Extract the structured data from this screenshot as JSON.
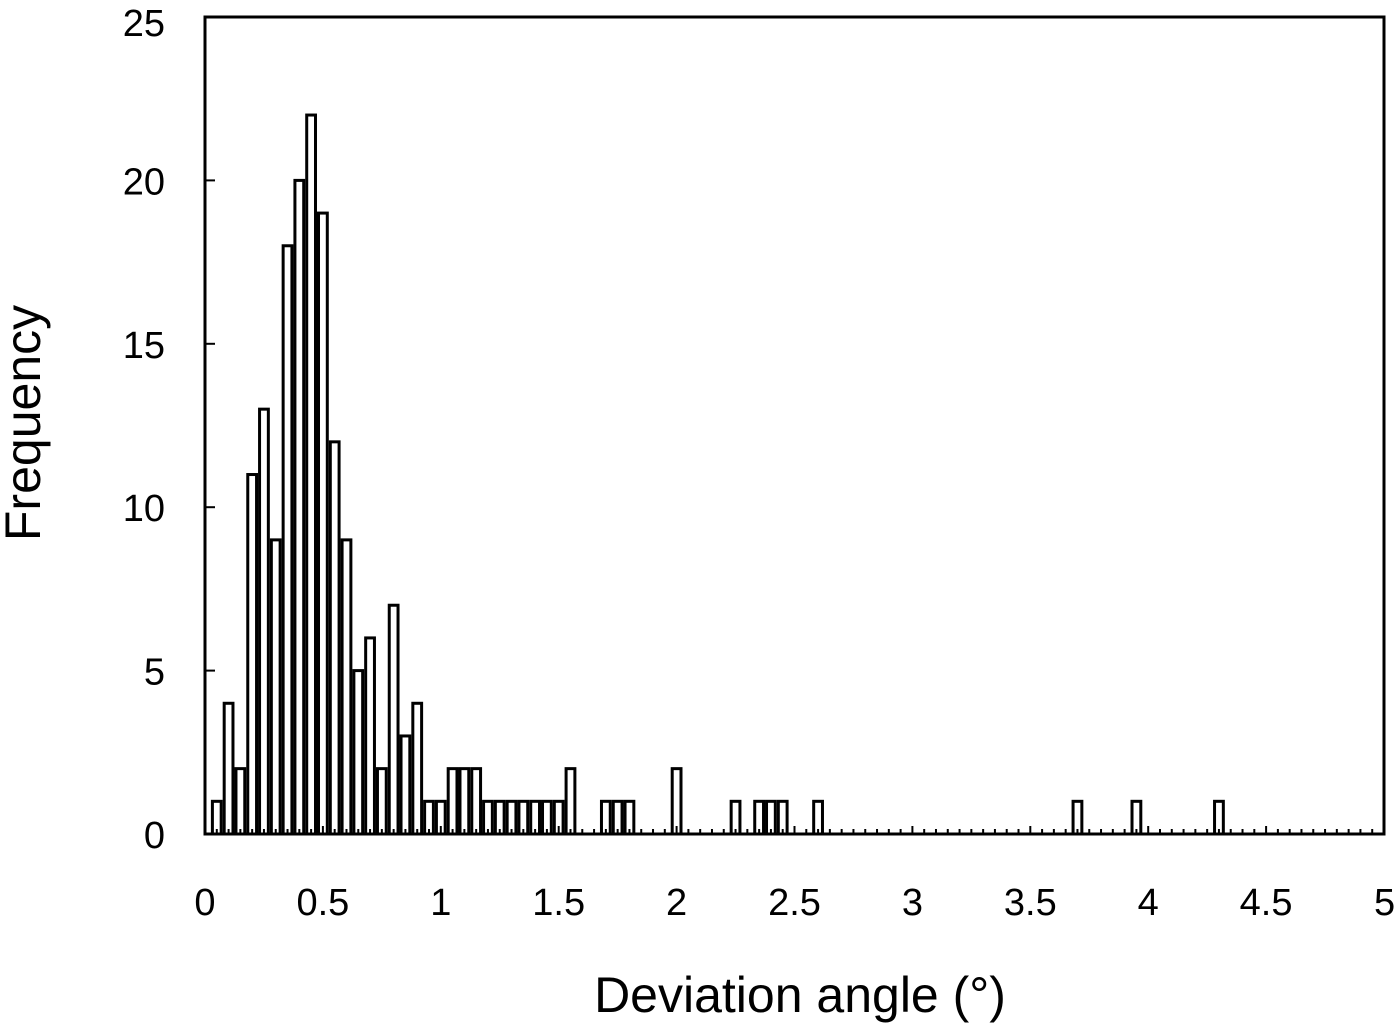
{
  "chart_data": {
    "type": "bar",
    "xlabel": "Deviation angle (°)",
    "ylabel": "Frequency",
    "xlim": [
      0,
      5
    ],
    "ylim": [
      0,
      25
    ],
    "xticks": [
      0,
      0.5,
      1,
      1.5,
      2,
      2.5,
      3,
      3.5,
      4,
      4.5,
      5
    ],
    "xtick_labels": [
      "0",
      "0.5",
      "1",
      "1.5",
      "2",
      "2.5",
      "3",
      "3.5",
      "4",
      "4.5",
      "5"
    ],
    "yticks": [
      0,
      5,
      10,
      15,
      20,
      25
    ],
    "ytick_labels": [
      "0",
      "5",
      "10",
      "15",
      "20",
      "25"
    ],
    "bin_width": 0.05,
    "grid": false,
    "legend": "none",
    "bar_fill": "#ffffff",
    "bar_stroke": "#000000",
    "x": [
      0.05,
      0.1,
      0.15,
      0.2,
      0.25,
      0.3,
      0.35,
      0.4,
      0.45,
      0.5,
      0.55,
      0.6,
      0.65,
      0.7,
      0.75,
      0.8,
      0.85,
      0.9,
      0.95,
      1.0,
      1.05,
      1.1,
      1.15,
      1.2,
      1.25,
      1.3,
      1.35,
      1.4,
      1.45,
      1.5,
      1.55,
      1.7,
      1.75,
      1.8,
      2.0,
      2.25,
      2.35,
      2.4,
      2.45,
      2.6,
      3.7,
      3.95,
      4.3
    ],
    "values": [
      1,
      4,
      2,
      11,
      13,
      9,
      18,
      20,
      22,
      19,
      12,
      9,
      5,
      6,
      2,
      7,
      3,
      4,
      1,
      1,
      2,
      2,
      2,
      1,
      1,
      1,
      1,
      1,
      1,
      1,
      2,
      1,
      1,
      1,
      2,
      1,
      1,
      1,
      1,
      1,
      1,
      1,
      1
    ]
  }
}
